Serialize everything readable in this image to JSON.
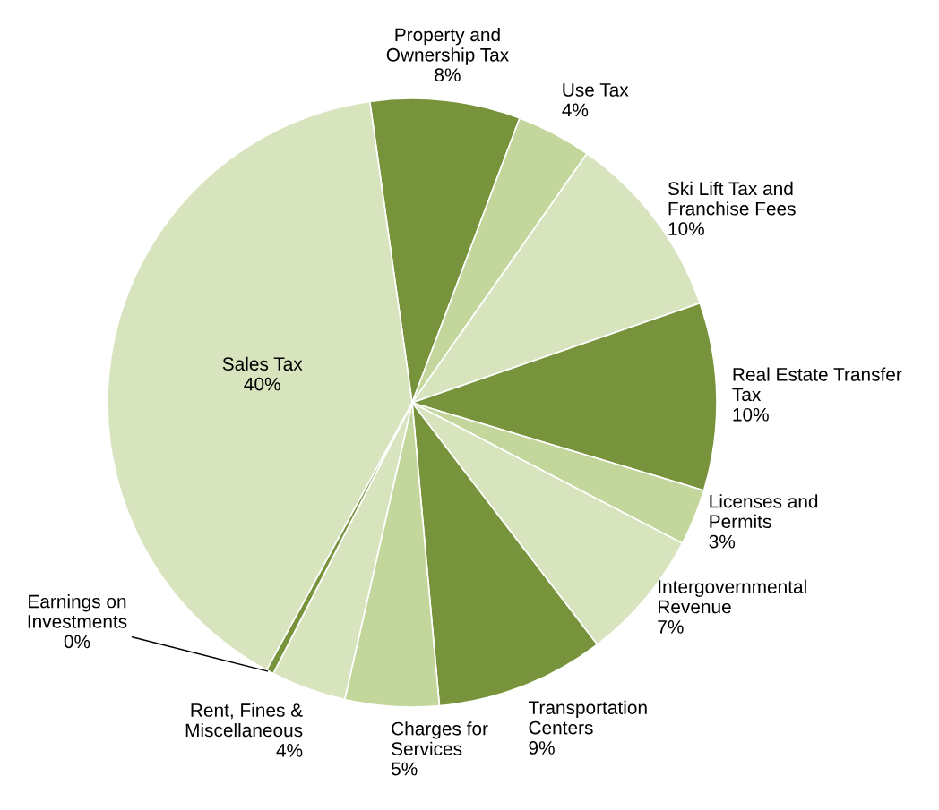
{
  "chart_data": {
    "type": "pie",
    "categories": [
      "Property and\nOwnership Tax",
      "Use Tax",
      "Ski Lift Tax and\nFranchise Fees",
      "Real Estate Transfer\nTax",
      "Licenses and\nPermits",
      "Intergovernmental\nRevenue",
      "Transportation\nCenters",
      "Charges for\nServices",
      "Rent, Fines &\nMiscellaneous",
      "Earnings on\nInvestments",
      "Sales Tax"
    ],
    "values": [
      8,
      4,
      10,
      10,
      3,
      7,
      9,
      5,
      4,
      0.4,
      40
    ],
    "value_labels": [
      "8%",
      "4%",
      "10%",
      "10%",
      "3%",
      "7%",
      "9%",
      "5%",
      "4%",
      "0%",
      "40%"
    ],
    "colors": [
      "#77933c",
      "#c3d69b",
      "#d7e4bd",
      "#77933c",
      "#c3d69b",
      "#d7e4bd",
      "#77933c",
      "#c3d69b",
      "#d7e4bd",
      "#77933c",
      "#d7e4bd"
    ],
    "legend": false
  }
}
